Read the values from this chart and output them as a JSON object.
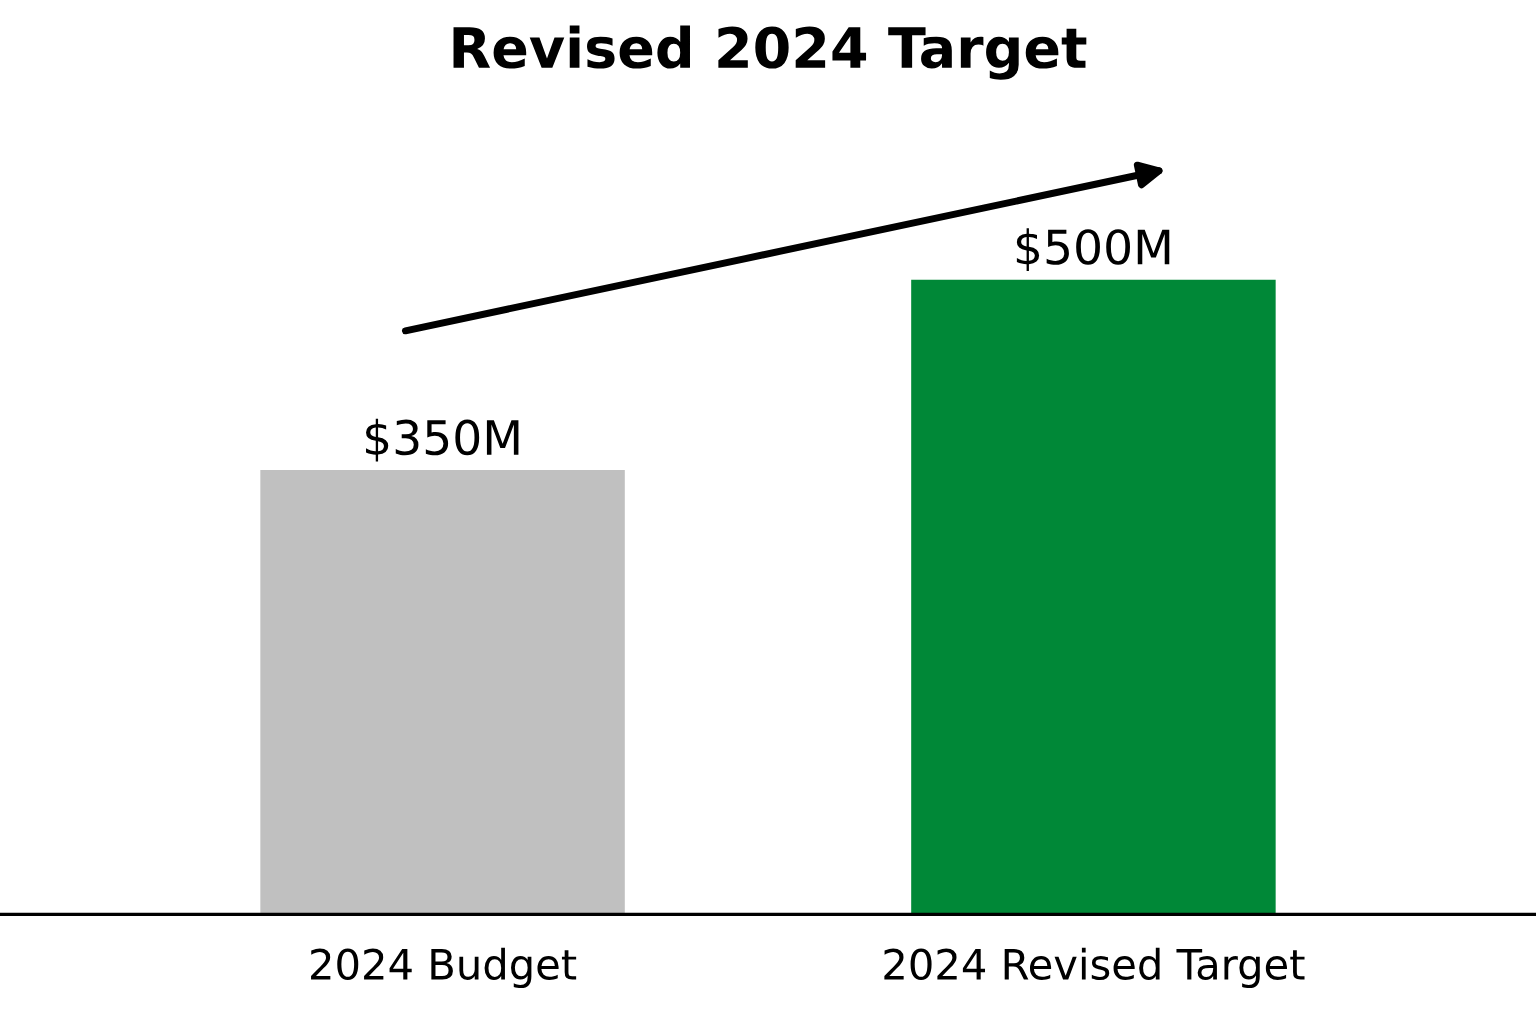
{
  "chart_data": {
    "type": "bar",
    "title": "Revised 2024 Target",
    "categories": [
      "2024 Budget",
      "2024 Revised Target"
    ],
    "values": [
      350,
      500
    ],
    "colors": [
      "#c0c0c0",
      "#008837"
    ],
    "value_labels": [
      "$350M",
      "$500M"
    ],
    "tick_labels": "x"
  }
}
